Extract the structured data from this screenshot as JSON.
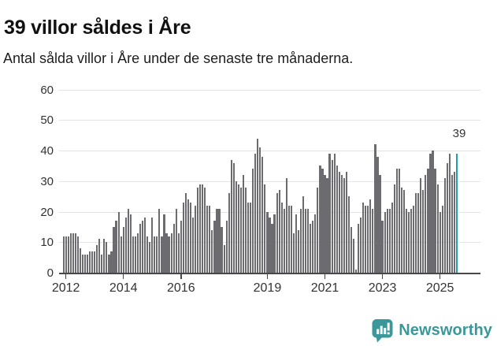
{
  "page": {
    "title": "39 villor såldes i Åre",
    "subtitle": "Antal sålda villor i Åre under de senaste tre månaderna."
  },
  "footer": {
    "brand": "Newsworthy",
    "brand_color": "#3a989a",
    "logo_icon": "speech-bubble-bar-chart"
  },
  "chart_data": {
    "type": "bar",
    "title": "39 villor såldes i Åre",
    "subtitle": "Antal sålda villor i Åre under de senaste tre månaderna.",
    "unit": "villor (rullande 3 månader)",
    "ylim": [
      0,
      60
    ],
    "y_ticks": [
      0,
      10,
      20,
      30,
      40,
      50,
      60
    ],
    "grid": true,
    "legend": false,
    "x_tick_labels": [
      "2012",
      "2014",
      "2016",
      "2019",
      "2021",
      "2023",
      "2025"
    ],
    "x_ticks": [
      {
        "label": "2012",
        "index": 1
      },
      {
        "label": "2014",
        "index": 25
      },
      {
        "label": "2016",
        "index": 49
      },
      {
        "label": "2019",
        "index": 85
      },
      {
        "label": "2021",
        "index": 109
      },
      {
        "label": "2023",
        "index": 133
      },
      {
        "label": "2025",
        "index": 157
      }
    ],
    "values": [
      12,
      12,
      12,
      13,
      13,
      13,
      12,
      8,
      6,
      6,
      6,
      7,
      7,
      7,
      9,
      11,
      6,
      11,
      10,
      6,
      7,
      15,
      17,
      20,
      12,
      15,
      18,
      21,
      19,
      12,
      12,
      13,
      16,
      17,
      18,
      12,
      10,
      18,
      12,
      12,
      21,
      12,
      19,
      13,
      12,
      13,
      16,
      21,
      13,
      17,
      23,
      26,
      24,
      23,
      18,
      22,
      28,
      29,
      29,
      28,
      22,
      22,
      14,
      17,
      21,
      21,
      15,
      9,
      17,
      26,
      37,
      36,
      30,
      29,
      28,
      32,
      28,
      23,
      23,
      34,
      39,
      44,
      41,
      38,
      29,
      20,
      18,
      16,
      19,
      26,
      27,
      23,
      21,
      31,
      22,
      22,
      13,
      19,
      14,
      21,
      25,
      21,
      21,
      16,
      17,
      19,
      28,
      35,
      34,
      32,
      31,
      39,
      37,
      39,
      35,
      33,
      32,
      31,
      33,
      25,
      15,
      11,
      1,
      16,
      18,
      23,
      22,
      22,
      24,
      21,
      42,
      38,
      32,
      17,
      20,
      21,
      21,
      23,
      29,
      34,
      34,
      28,
      27,
      21,
      20,
      21,
      22,
      26,
      26,
      31,
      27,
      32,
      34,
      39,
      40,
      34,
      29,
      20,
      22,
      31,
      36,
      39,
      32,
      33,
      39
    ],
    "bar_color": "#6b6b70",
    "highlight_color": "#1d9fb0",
    "highlight_index": 164,
    "annotation": {
      "text": "39",
      "index": 164
    }
  }
}
